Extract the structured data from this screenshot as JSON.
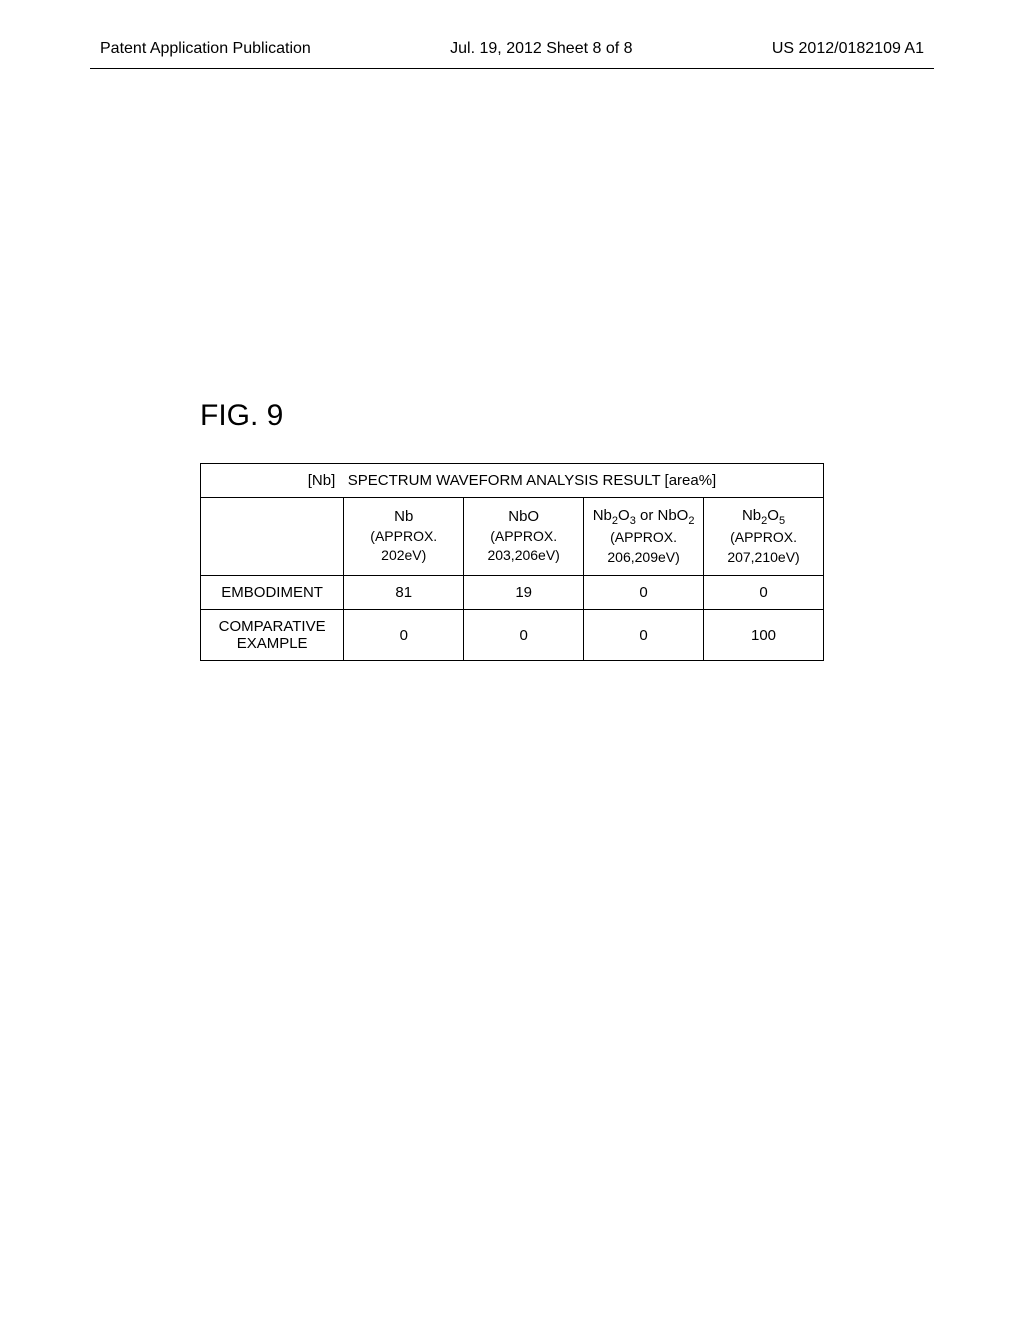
{
  "header": {
    "left": "Patent Application Publication",
    "center": "Jul. 19, 2012  Sheet 8 of 8",
    "right": "US 2012/0182109 A1"
  },
  "figure": {
    "label": "FIG. 9",
    "table": {
      "title_prefix": "[Nb]",
      "title_main": "SPECTRUM WAVEFORM ANALYSIS RESULT",
      "title_unit": "[area%]",
      "columns": [
        {
          "formula_html": "Nb",
          "approx": "(APPROX.",
          "ev": "202eV)"
        },
        {
          "formula_html": "NbO",
          "approx": "(APPROX.",
          "ev": "203,206eV)"
        },
        {
          "formula_html": "Nb<span class=\"sub-num\">2</span>O<span class=\"sub-num\">3</span> or NbO<span class=\"sub-num\">2</span>",
          "approx": "(APPROX.",
          "ev": "206,209eV)"
        },
        {
          "formula_html": "Nb<span class=\"sub-num\">2</span>O<span class=\"sub-num\">5</span>",
          "approx": "(APPROX.",
          "ev": "207,210eV)"
        }
      ],
      "rows": [
        {
          "label": "EMBODIMENT",
          "values": [
            "81",
            "19",
            "0",
            "0"
          ]
        },
        {
          "label": "COMPARATIVE EXAMPLE",
          "values": [
            "0",
            "0",
            "0",
            "100"
          ]
        }
      ]
    }
  },
  "style": {
    "page_bg": "#ffffff",
    "text_color": "#000000",
    "border_color": "#000000",
    "figure_label_fontsize": 30,
    "header_fontsize": 16,
    "table_title_fontsize": 17,
    "cell_fontsize": 15
  }
}
